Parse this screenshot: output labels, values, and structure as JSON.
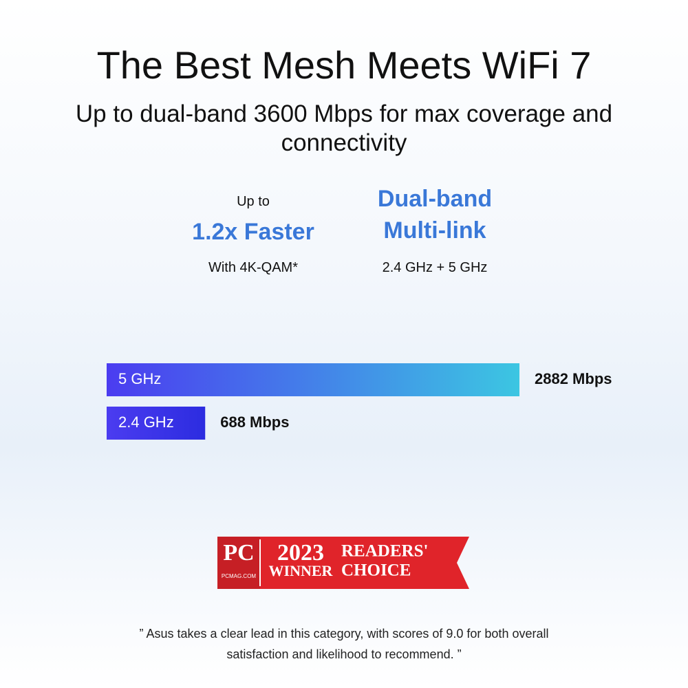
{
  "header": {
    "title": "The Best Mesh Meets WiFi 7",
    "subtitle": "Up to dual-band 3600 Mbps for max coverage and connectivity"
  },
  "features": [
    {
      "lead": "Up to",
      "headline": "1.2x Faster",
      "note": "With 4K-QAM*"
    },
    {
      "headline_lines": [
        "Dual-band",
        "Multi-link"
      ],
      "note": "2.4 GHz + 5 GHz"
    }
  ],
  "chart_data": {
    "type": "bar",
    "orientation": "horizontal",
    "categories": [
      "5 GHz",
      "2.4 GHz"
    ],
    "values": [
      2882,
      688
    ],
    "value_labels": [
      "2882 Mbps",
      "688 Mbps"
    ],
    "colors": [
      [
        "#4b3cf0",
        "#3cc6e2"
      ],
      [
        "#4b3cf0",
        "#2c2ce0"
      ]
    ]
  },
  "badge": {
    "brand": "PC",
    "site": "PCMAG.COM",
    "year": "2023",
    "status": "WINNER",
    "award_lines": [
      "READERS'",
      "CHOICE"
    ]
  },
  "quote": "” Asus takes a clear lead in this category, with scores of 9.0 for both overall satisfaction and likelihood to recommend. ”"
}
